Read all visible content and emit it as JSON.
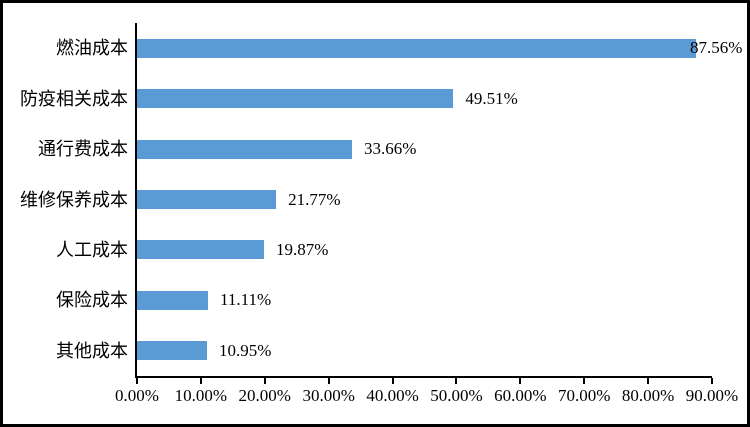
{
  "figure": {
    "background": "#ffffff",
    "frame_color": "#000000"
  },
  "chart_data": {
    "type": "bar",
    "orientation": "horizontal",
    "title": "",
    "xlabel": "",
    "ylabel": "",
    "categories": [
      "燃油成本",
      "防疫相关成本",
      "通行费成本",
      "维修保养成本",
      "人工成本",
      "保险成本",
      "其他成本"
    ],
    "values": [
      87.56,
      49.51,
      33.66,
      21.77,
      19.87,
      11.11,
      10.95
    ],
    "value_labels": [
      "87.56%",
      "49.51%",
      "33.66%",
      "21.77%",
      "19.87%",
      "11.11%",
      "10.95%"
    ],
    "x_tick_labels": [
      "0.00%",
      "10.00%",
      "20.00%",
      "30.00%",
      "40.00%",
      "50.00%",
      "60.00%",
      "70.00%",
      "80.00%",
      "90.00%"
    ],
    "xlim": [
      0,
      90
    ],
    "x_tick_step": 10,
    "grid": false,
    "legend": false,
    "bar_color": "#5B9BD5",
    "axis_color": "#000000",
    "text_color": "#000000"
  }
}
